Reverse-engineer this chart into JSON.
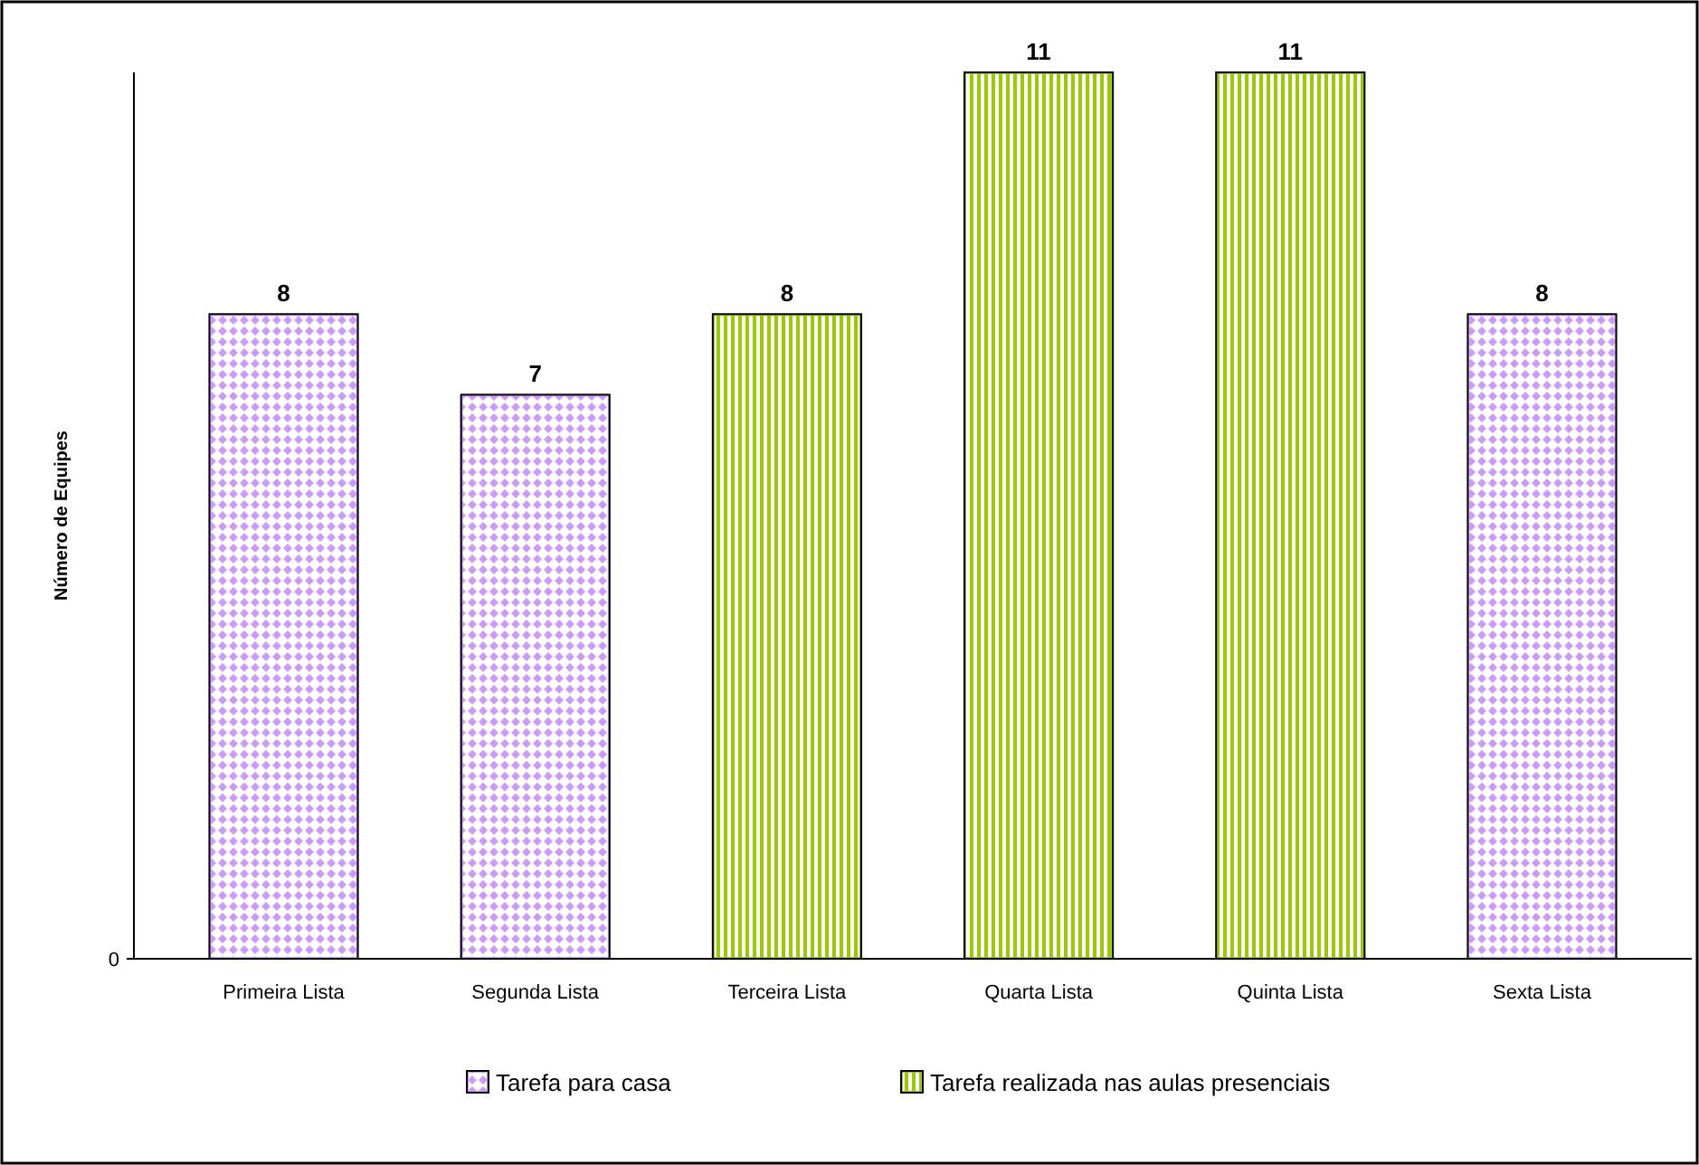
{
  "chart_data": {
    "type": "bar",
    "ylabel": "Número de Equipes",
    "categories": [
      "Primeira Lista",
      "Segunda Lista",
      "Terceira Lista",
      "Quarta Lista",
      "Quinta Lista",
      "Sexta Lista"
    ],
    "series": [
      {
        "name": "Tarefa para casa",
        "color": "#cc99ff",
        "values": [
          8,
          7,
          null,
          null,
          null,
          8
        ]
      },
      {
        "name": "Tarefa realizada nas aulas presenciais",
        "color": "#99cc00",
        "values": [
          null,
          null,
          8,
          11,
          11,
          null
        ]
      }
    ],
    "annotations": [
      "0"
    ],
    "data_labels": true,
    "legend": "bottom"
  }
}
